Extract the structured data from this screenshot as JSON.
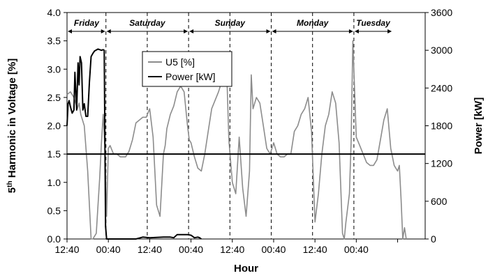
{
  "chart_data": {
    "type": "line",
    "xlabel": "Hour",
    "ylabel_left": "5th Harmonic in Voltage [%]",
    "ylabel_left_main": "5",
    "ylabel_left_sup": "th",
    "ylabel_left_rest": " Harmonic in Voltage [%]",
    "ylabel_right": "Power [kW]",
    "x_hours_range": [
      0,
      104
    ],
    "x_ticks_hours": [
      0,
      12,
      24,
      36,
      48,
      60,
      72,
      84,
      96
    ],
    "x_tick_labels": [
      "12:40",
      "00:40",
      "12:40",
      "00:40",
      "12:40",
      "00:40",
      "12:40",
      "00:40",
      ""
    ],
    "ylim_left": [
      0,
      4
    ],
    "y_ticks_left": [
      0,
      0.5,
      1,
      1.5,
      2,
      2.5,
      3,
      3.5,
      4
    ],
    "y_tick_labels_left": [
      "0.0",
      "0.5",
      "1.0",
      "1.5",
      "2.0",
      "2.5",
      "3.0",
      "3.5",
      "4.0"
    ],
    "ylim_right": [
      0,
      3600
    ],
    "y_ticks_right": [
      0,
      600,
      1200,
      1800,
      2400,
      3000,
      3600
    ],
    "y_tick_labels_right": [
      "0",
      "600",
      "1200",
      "1800",
      "2400",
      "3000",
      "3600"
    ],
    "grid": false,
    "legend": {
      "placement": "top-center",
      "entries": [
        "U5 [%]",
        "Power [kW]"
      ]
    },
    "days": [
      {
        "label": "Friday",
        "start": 0,
        "end": 11.3
      },
      {
        "label": "Saturday",
        "start": 11.3,
        "end": 35.3
      },
      {
        "label": "Sunday",
        "start": 35.3,
        "end": 59.3
      },
      {
        "label": "Monday",
        "start": 59.3,
        "end": 83.3
      },
      {
        "label": "Tuesday",
        "start": 83.3,
        "end": 94.5
      }
    ],
    "dashed_lines_hours": [
      11.3,
      23.3,
      35.3,
      47.3,
      59.3,
      71.3,
      83.3
    ],
    "reference_line": {
      "axis": "left",
      "value": 1.5
    },
    "series": [
      {
        "name": "U5 [%]",
        "axis": "left",
        "color": "#8c8c8c",
        "x": [
          0,
          1,
          2,
          3,
          3.5,
          4,
          5,
          6,
          7,
          7.5,
          8.5,
          9.5,
          10,
          10.5,
          11,
          11.5,
          12,
          12.5,
          13.5,
          14.5,
          15.5,
          17,
          18,
          19,
          20,
          21,
          22,
          23,
          24,
          25,
          26,
          27,
          28,
          28.5,
          29,
          30,
          31,
          32,
          33,
          34,
          35,
          35.5,
          36,
          37,
          38,
          39,
          40,
          41,
          42,
          43,
          44,
          45,
          46,
          46.5,
          47,
          48,
          49,
          50,
          51,
          52,
          53,
          53.5,
          54,
          55,
          56,
          57,
          58,
          59,
          60,
          61,
          62,
          63,
          64,
          65,
          66,
          67,
          68,
          69,
          70,
          71,
          72,
          73,
          74,
          75,
          76,
          77,
          78,
          79,
          80,
          80.5,
          81,
          82,
          82.5,
          83,
          84,
          85,
          86,
          87,
          88,
          89,
          90,
          91,
          92,
          93,
          94,
          95,
          96,
          96.5,
          97,
          97.5,
          98,
          98.5
        ],
        "y": [
          2.55,
          2.6,
          2.5,
          2.3,
          2.4,
          2.2,
          2.0,
          1.2,
          0.0,
          0.0,
          0.1,
          1.1,
          1.7,
          2.2,
          1.6,
          0.4,
          1.6,
          1.65,
          1.5,
          1.5,
          1.45,
          1.45,
          1.55,
          1.75,
          2.05,
          2.1,
          2.15,
          2.15,
          2.3,
          1.8,
          0.6,
          0.4,
          1.5,
          1.65,
          1.95,
          2.2,
          2.35,
          2.6,
          2.7,
          2.6,
          2.0,
          1.75,
          1.7,
          1.45,
          1.25,
          1.2,
          1.5,
          1.9,
          2.3,
          2.45,
          2.6,
          2.8,
          2.9,
          2.7,
          1.75,
          1.0,
          0.8,
          1.8,
          0.9,
          0.4,
          1.2,
          2.9,
          2.3,
          2.5,
          2.4,
          2.0,
          1.6,
          1.5,
          1.7,
          1.5,
          1.45,
          1.45,
          1.5,
          1.5,
          1.9,
          2.0,
          2.2,
          2.3,
          2.5,
          1.9,
          0.3,
          0.8,
          1.5,
          2.0,
          2.2,
          2.6,
          2.4,
          1.7,
          0.1,
          0.0,
          0.3,
          0.8,
          1.7,
          3.5,
          1.8,
          1.65,
          1.5,
          1.35,
          1.3,
          1.3,
          1.4,
          1.75,
          2.1,
          2.3,
          1.6,
          1.3,
          1.2,
          1.3,
          0.7,
          0.0,
          0.2,
          0.0
        ]
      },
      {
        "name": "Power [kW]",
        "axis": "right",
        "color": "#000000",
        "x": [
          0,
          0.3,
          0.6,
          1,
          1.5,
          2,
          2.3,
          2.8,
          3.2,
          3.5,
          3.8,
          4.2,
          4.6,
          5,
          5.5,
          6,
          6.5,
          7,
          7.5,
          8,
          9,
          10,
          10.5,
          10.8,
          11.0,
          11.2,
          11.5,
          12,
          13,
          14,
          20,
          22,
          24,
          26,
          28,
          30,
          31,
          32,
          35,
          36,
          37,
          38,
          38.5,
          39
        ],
        "y": [
          1800,
          2150,
          2200,
          2100,
          2000,
          2050,
          2650,
          2050,
          2800,
          2450,
          2900,
          2800,
          2050,
          2150,
          1950,
          1950,
          2500,
          2900,
          2950,
          2990,
          3020,
          3000,
          3010,
          3000,
          1500,
          200,
          0,
          0,
          0,
          0,
          0,
          30,
          20,
          25,
          30,
          30,
          20,
          70,
          70,
          60,
          20,
          30,
          20,
          0
        ]
      }
    ]
  }
}
